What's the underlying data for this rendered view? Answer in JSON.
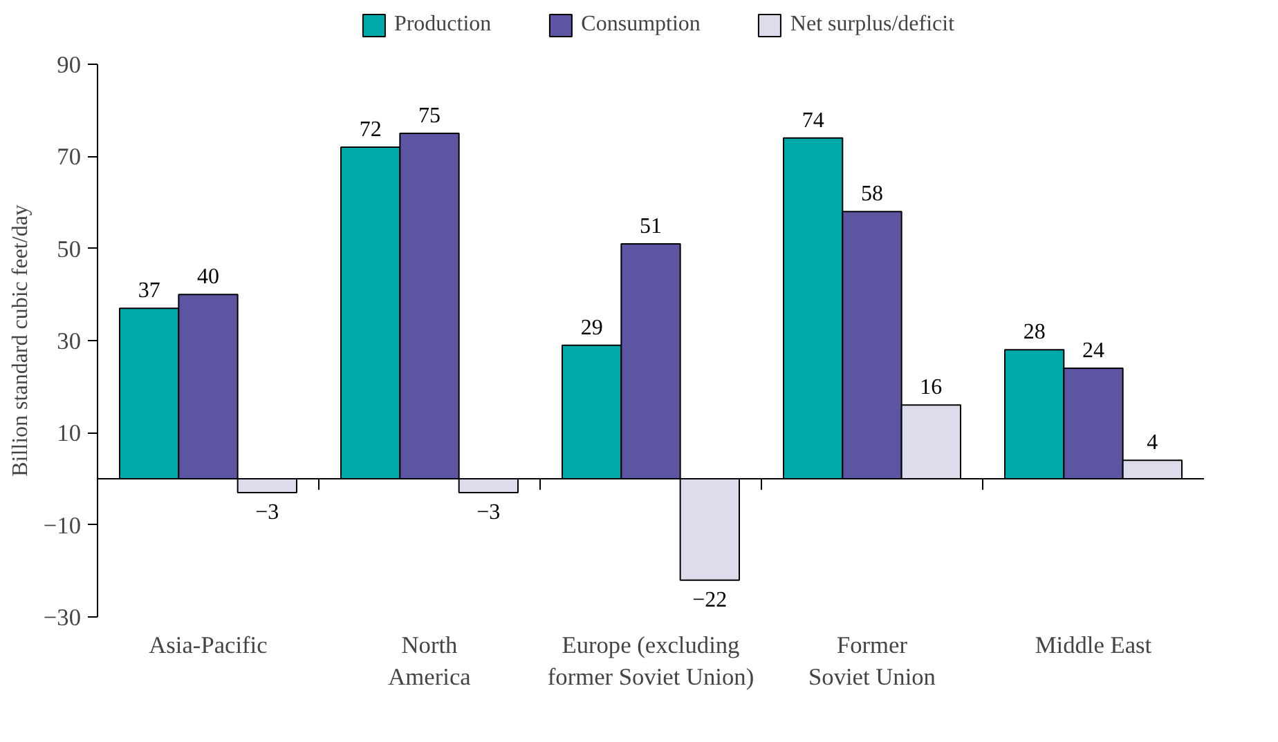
{
  "chart_data": {
    "type": "bar",
    "ylabel": "Billion standard cubic feet/day",
    "categories": [
      "Asia-Pacific",
      "North\nAmerica",
      "Europe (excluding\nformer Soviet Union)",
      "Former\nSoviet Union",
      "Middle East"
    ],
    "series": [
      {
        "name": "Production",
        "color": "#00a9a9",
        "values": [
          37,
          72,
          29,
          74,
          28
        ],
        "value_labels": [
          "37",
          "72",
          "29",
          "74",
          "28"
        ]
      },
      {
        "name": "Consumption",
        "color": "#5b55a2",
        "values": [
          40,
          75,
          51,
          58,
          24
        ],
        "value_labels": [
          "40",
          "75",
          "51",
          "58",
          "24"
        ]
      },
      {
        "name": "Net surplus/deficit",
        "color": "#dcdcec",
        "values": [
          -3,
          -3,
          -22,
          16,
          4
        ],
        "value_labels": [
          "−3",
          "−3",
          "−22",
          "16",
          "4"
        ]
      }
    ],
    "ylim": [
      -30,
      90
    ],
    "yticks": [
      {
        "value": -30,
        "label": "−30"
      },
      {
        "value": -10,
        "label": "−10"
      },
      10,
      30,
      50,
      70,
      90
    ],
    "grid": false,
    "legend": "top"
  }
}
